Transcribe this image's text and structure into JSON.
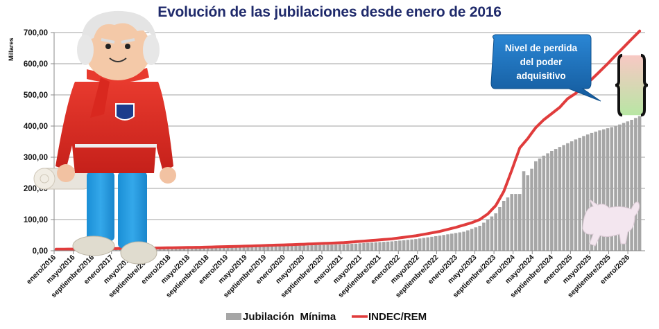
{
  "chart_data": {
    "type": "bar",
    "title": "Evolución de las jubilaciones desde enero de 2016",
    "ylabel": "Millares",
    "xlabel": "",
    "ylim": [
      0,
      700
    ],
    "yticks": [
      0,
      100,
      200,
      300,
      400,
      500,
      600,
      700
    ],
    "ytick_labels": [
      "0,00",
      "100,00",
      "200,00",
      "300,00",
      "400,00",
      "500,00",
      "600,00",
      "700,00"
    ],
    "grid": true,
    "legend": "bottom",
    "x_start": "enero/2016",
    "x_months": 123,
    "xtick_labels": [
      "enero/2016",
      "mayo/2016",
      "septiembre/2016",
      "enero/2017",
      "mayo/2017",
      "septiembre/2017",
      "enero/2018",
      "mayo/2018",
      "septiembre/2018",
      "enero/2019",
      "mayo/2019",
      "septiembre/2019",
      "enero/2020",
      "mayo/2020",
      "septiembre/2020",
      "enero/2021",
      "mayo/2021",
      "septiembre/2021",
      "enero/2022",
      "mayo/2022",
      "septiembre/2022",
      "enero/2023",
      "mayo/2023",
      "septiembre/2023",
      "enero/2024",
      "mayo/2024",
      "septiembre/2024",
      "enero/2025",
      "mayo/2025",
      "septiembre/2025",
      "enero/2026"
    ],
    "series": [
      {
        "name": "Jubilación  Mínima",
        "type": "bar",
        "color": "#a6a6a6",
        "keypoints": [
          [
            0,
            4.9
          ],
          [
            12,
            6.4
          ],
          [
            24,
            8.1
          ],
          [
            36,
            10.4
          ],
          [
            48,
            13.5
          ],
          [
            60,
            16
          ],
          [
            72,
            20.6
          ],
          [
            84,
            30
          ],
          [
            90,
            37.5
          ],
          [
            96,
            48.5
          ],
          [
            102,
            61
          ],
          [
            104,
            70
          ],
          [
            106,
            80
          ],
          [
            108,
            100
          ],
          [
            110,
            120
          ],
          [
            111,
            140
          ],
          [
            112,
            160
          ],
          [
            114,
            182
          ],
          [
            116,
            182
          ],
          [
            117,
            255
          ],
          [
            118,
            242
          ],
          [
            119,
            263
          ],
          [
            120,
            287
          ],
          [
            122,
            305
          ],
          [
            124,
            320
          ],
          [
            126,
            333
          ],
          [
            128,
            345
          ],
          [
            130,
            357
          ],
          [
            132,
            368
          ],
          [
            134,
            378
          ],
          [
            136,
            386
          ],
          [
            138,
            393
          ],
          [
            140,
            400
          ],
          [
            142,
            410
          ],
          [
            144,
            420
          ],
          [
            146,
            432
          ]
        ]
      },
      {
        "name": "INDEC/REM",
        "type": "line",
        "color": "#e03c3c",
        "keypoints": [
          [
            0,
            4.9
          ],
          [
            12,
            6.5
          ],
          [
            24,
            8.5
          ],
          [
            36,
            11
          ],
          [
            48,
            15
          ],
          [
            60,
            20
          ],
          [
            72,
            26
          ],
          [
            84,
            38
          ],
          [
            90,
            48
          ],
          [
            96,
            62
          ],
          [
            100,
            75
          ],
          [
            104,
            90
          ],
          [
            106,
            100
          ],
          [
            108,
            118
          ],
          [
            110,
            145
          ],
          [
            112,
            190
          ],
          [
            114,
            258
          ],
          [
            116,
            330
          ],
          [
            118,
            360
          ],
          [
            120,
            395
          ],
          [
            122,
            420
          ],
          [
            124,
            440
          ],
          [
            126,
            460
          ],
          [
            128,
            488
          ],
          [
            130,
            505
          ],
          [
            132,
            528
          ],
          [
            134,
            550
          ],
          [
            136,
            575
          ],
          [
            138,
            600
          ],
          [
            140,
            627
          ]
        ]
      }
    ],
    "annotations": [
      {
        "text_lines": [
          "Nivel de perdida",
          "del poder",
          "adquisitivo"
        ],
        "type": "callout",
        "color": "#1c6cb5"
      },
      {
        "type": "bracket-range",
        "from": 435,
        "to": 627,
        "gradient_top": "#f8c8c4",
        "gradient_bottom": "#b8e6a4"
      }
    ]
  },
  "legend": {
    "bar_label": "Jubilación  Mínima",
    "line_label": "INDEC/REM"
  },
  "decorations": {
    "figure_left": "playmobil-grandpa",
    "figure_right": "porcelain-cat"
  }
}
